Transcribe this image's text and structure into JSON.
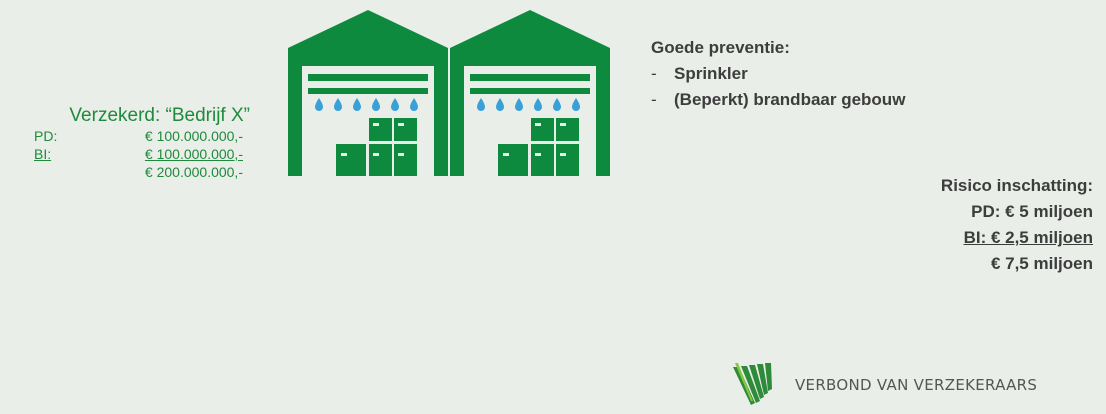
{
  "insured": {
    "title": "Verzekerd: “Bedrijf X”",
    "rows": [
      {
        "label": "PD:",
        "value": "€ 100.000.000,-"
      },
      {
        "label": "BI:",
        "value": "€ 100.000.000,-"
      },
      {
        "label": "",
        "value": "€ 200.000.000,-"
      }
    ]
  },
  "prevention": {
    "title": "Goede preventie:",
    "items": [
      "Sprinkler",
      "(Beperkt) brandbaar gebouw"
    ]
  },
  "risk": {
    "title": "Risico inschatting:",
    "pd": "PD: € 5 miljoen",
    "bi": "BI: € 2,5 miljoen",
    "total": "€ 7,5 miljoen"
  },
  "logo": {
    "icon": "verbond-logo-stripes",
    "text": "VERBOND VAN VERZEKERAARS"
  },
  "illustration": {
    "icon": "warehouse-sprinkler-icon",
    "colors": {
      "building": "#0e8a3e",
      "water": "#3aa0d8"
    }
  }
}
